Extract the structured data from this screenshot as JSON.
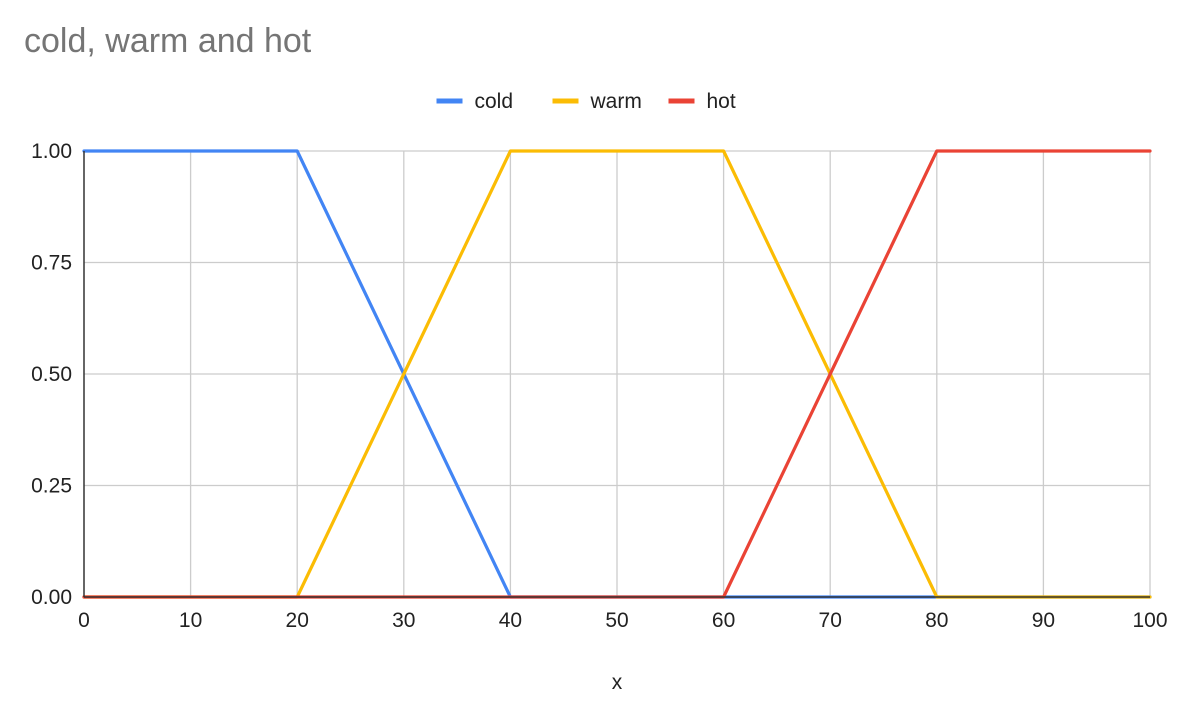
{
  "chart_data": {
    "type": "line",
    "title": "cold, warm and hot",
    "xlabel": "x",
    "ylabel": "",
    "xlim": [
      0,
      100
    ],
    "ylim": [
      0,
      1
    ],
    "x_ticks": [
      0,
      10,
      20,
      30,
      40,
      50,
      60,
      70,
      80,
      90,
      100
    ],
    "x_tick_labels": [
      "0",
      "10",
      "20",
      "30",
      "40",
      "50",
      "60",
      "70",
      "80",
      "90",
      "100"
    ],
    "y_ticks": [
      0,
      0.25,
      0.5,
      0.75,
      1
    ],
    "y_tick_labels": [
      "0.00",
      "0.25",
      "0.50",
      "0.75",
      "1.00"
    ],
    "grid": true,
    "legend_position": "top",
    "series": [
      {
        "name": "cold",
        "color": "#4285F4",
        "x": [
          0,
          10,
          20,
          30,
          40,
          50,
          60,
          70,
          80,
          90,
          100
        ],
        "y": [
          1,
          1,
          1,
          0.5,
          0,
          0,
          0,
          0,
          0,
          0,
          0
        ]
      },
      {
        "name": "warm",
        "color": "#FBBC04",
        "x": [
          0,
          10,
          20,
          30,
          40,
          50,
          60,
          70,
          80,
          90,
          100
        ],
        "y": [
          0,
          0,
          0,
          0.5,
          1,
          1,
          1,
          0.5,
          0,
          0,
          0
        ]
      },
      {
        "name": "hot",
        "color": "#EA4335",
        "x": [
          0,
          10,
          20,
          30,
          40,
          50,
          60,
          70,
          80,
          90,
          100
        ],
        "y": [
          0,
          0,
          0,
          0,
          0,
          0,
          0,
          0.5,
          1,
          1,
          1
        ]
      }
    ]
  }
}
